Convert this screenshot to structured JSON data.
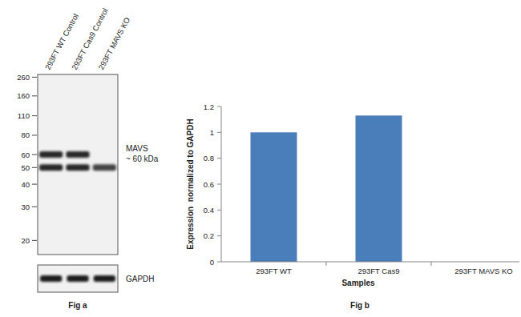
{
  "blot": {
    "title": "Fig a",
    "lanes": [
      {
        "label": "293FT WT Control",
        "bands": [
          60,
          50
        ]
      },
      {
        "label": "293FT Cas9 Control",
        "bands": [
          60,
          50
        ]
      },
      {
        "label": "293FT MAVS KO",
        "bands": [
          50
        ]
      }
    ],
    "markers": [
      260,
      160,
      110,
      80,
      60,
      50,
      40,
      30,
      20
    ],
    "target": {
      "name": "MAVS",
      "size_label": "~ 60 kDa"
    },
    "loading_control": {
      "name": "GAPDH"
    }
  },
  "chart_data": {
    "type": "bar",
    "title": "Fig b",
    "categories": [
      "293FT WT",
      "293FT Cas9",
      "293FT MAVS KO"
    ],
    "values": [
      1,
      1.13,
      0
    ],
    "color": "#4a7ebb",
    "ylim": [
      0,
      1.2
    ],
    "yticks": [
      0,
      0.2,
      0.4,
      0.6,
      0.8,
      1,
      1.2
    ],
    "y_label": "Expression  normalized to GAPDH",
    "x_label": "Samples",
    "grid": false
  }
}
